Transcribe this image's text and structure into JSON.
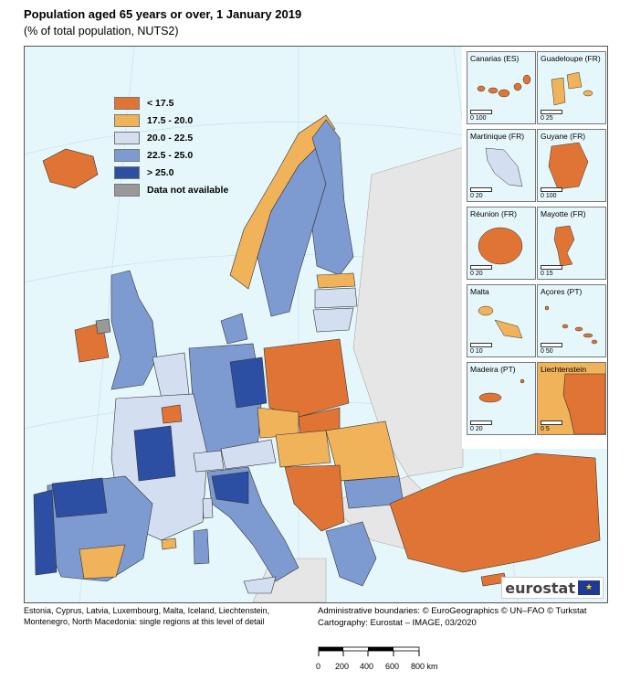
{
  "title": "Population aged 65 years or over, 1 January 2019",
  "subtitle": "(% of total population, NUTS2)",
  "colors": {
    "lt_17_5": "#e07434",
    "c17_5_20": "#f0b35a",
    "c20_22_5": "#d3def0",
    "c22_5_25": "#7e9bd1",
    "gt_25": "#2c4fa3",
    "na": "#999999",
    "sea": "#e6f7fb",
    "nonEU": "#e6e6e6"
  },
  "legend": [
    {
      "label": "< 17.5",
      "color": "#e07434"
    },
    {
      "label": "17.5 - 20.0",
      "color": "#f0b35a"
    },
    {
      "label": "20.0 - 22.5",
      "color": "#d3def0"
    },
    {
      "label": "22.5 - 25.0",
      "color": "#7e9bd1"
    },
    {
      "label": "> 25.0",
      "color": "#2c4fa3"
    },
    {
      "label": "Data not available",
      "color": "#999999"
    }
  ],
  "insets": [
    {
      "name": "Canarias (ES)",
      "scale": "0   100",
      "color": "#e07434"
    },
    {
      "name": "Guadeloupe (FR)",
      "scale": "0   25",
      "color": "#f0b35a"
    },
    {
      "name": "Martinique (FR)",
      "scale": "0   20",
      "color": "#d3def0"
    },
    {
      "name": "Guyane (FR)",
      "scale": "0   100",
      "color": "#e07434"
    },
    {
      "name": "Réunion (FR)",
      "scale": "0   20",
      "color": "#e07434"
    },
    {
      "name": "Mayotte (FR)",
      "scale": "0   15",
      "color": "#e07434"
    },
    {
      "name": "Malta",
      "scale": "0   10",
      "color": "#f0b35a"
    },
    {
      "name": "Açores (PT)",
      "scale": "0   50",
      "color": "#e07434"
    },
    {
      "name": "Madeira (PT)",
      "scale": "0   20",
      "color": "#e07434"
    },
    {
      "name": "Liechtenstein",
      "scale": "0   5",
      "color": "#e07434"
    }
  ],
  "logo_text": "eurostat",
  "footnote": "Estonia, Cyprus, Latvia, Luxembourg, Malta, Iceland, Liechtenstein, Montenegro, North Macedonia: single regions at this level of detail",
  "credits_line1": "Administrative boundaries: © EuroGeographics © UN–FAO © Turkstat",
  "credits_line2": "Cartography: Eurostat – IMAGE, 03/2020",
  "scale_labels": [
    "0",
    "200",
    "400",
    "600",
    "800 km"
  ]
}
